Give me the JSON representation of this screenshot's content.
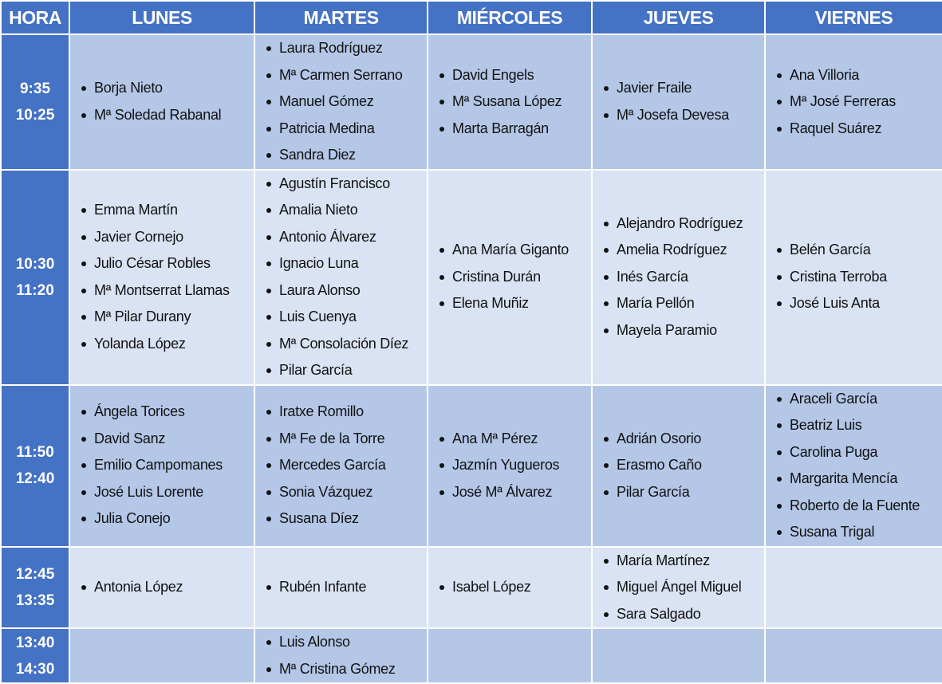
{
  "colors": {
    "header": "#4472C4",
    "row_dark": "#B4C7E7",
    "row_light": "#DAE3F3"
  },
  "headers": [
    "HORA",
    "LUNES",
    "MARTES",
    "MIÉRCOLES",
    "JUEVES",
    "VIERNES"
  ],
  "rows": [
    {
      "start": "9:35",
      "end": "10:25",
      "days": [
        [
          "Borja Nieto",
          "Mª Soledad Rabanal"
        ],
        [
          "Laura Rodríguez",
          "Mª Carmen Serrano",
          "Manuel Gómez",
          "Patricia Medina",
          "Sandra Diez"
        ],
        [
          "David Engels",
          "Mª Susana López",
          "Marta Barragán"
        ],
        [
          "Javier Fraile",
          "Mª Josefa Devesa"
        ],
        [
          "Ana Villoria",
          "Mª José Ferreras",
          "Raquel Suárez"
        ]
      ]
    },
    {
      "start": "10:30",
      "end": "11:20",
      "days": [
        [
          "Emma Martín",
          "Javier Cornejo",
          "Julio César Robles",
          "Mª Montserrat Llamas",
          "Mª Pilar Durany",
          "Yolanda López"
        ],
        [
          "Agustín Francisco",
          "Amalia Nieto",
          "Antonio Álvarez",
          "Ignacio Luna",
          "Laura Alonso",
          "Luis Cuenya",
          "Mª Consolación Díez",
          "Pilar García"
        ],
        [
          "Ana María Giganto",
          "Cristina Durán",
          "Elena Muñiz"
        ],
        [
          "Alejandro Rodríguez",
          "Amelia Rodríguez",
          "Inés García",
          "María Pellón",
          "Mayela Paramio"
        ],
        [
          "Belén García",
          "Cristina Terroba",
          "José Luis Anta"
        ]
      ]
    },
    {
      "start": "11:50",
      "end": "12:40",
      "days": [
        [
          "Ángela Torices",
          "David Sanz",
          "Emilio Campomanes",
          "José Luis Lorente",
          "Julia Conejo"
        ],
        [
          "Iratxe Romillo",
          "Mª Fe de la Torre",
          "Mercedes García",
          "Sonia Vázquez",
          "Susana Díez"
        ],
        [
          "Ana Mª Pérez",
          "Jazmín Yugueros",
          "José Mª Álvarez"
        ],
        [
          "Adrián Osorio",
          "Erasmo Caño",
          "Pilar García"
        ],
        [
          "Araceli García",
          "Beatriz Luis",
          "Carolina Puga",
          "Margarita Mencía",
          "Roberto de la Fuente",
          "Susana Trigal"
        ]
      ]
    },
    {
      "start": "12:45",
      "end": "13:35",
      "days": [
        [
          "Antonia López"
        ],
        [
          "Rubén Infante"
        ],
        [
          "Isabel López"
        ],
        [
          "María Martínez",
          "Miguel Ángel Miguel",
          "Sara Salgado"
        ],
        []
      ]
    },
    {
      "start": "13:40",
      "end": "14:30",
      "days": [
        [],
        [
          "Luis Alonso",
          "Mª Cristina Gómez"
        ],
        [],
        [],
        []
      ]
    }
  ]
}
